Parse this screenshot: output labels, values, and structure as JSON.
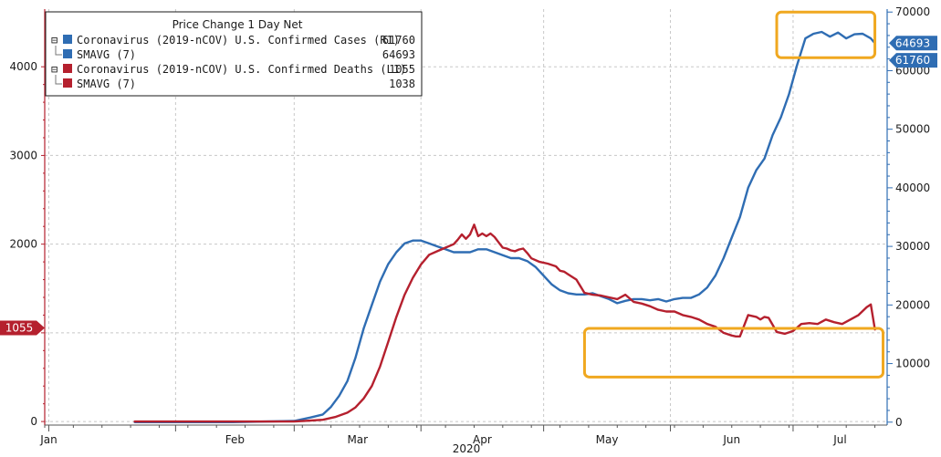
{
  "chart_data": {
    "type": "line",
    "legend": {
      "title": "Price Change 1 Day Net",
      "placement": "top-left",
      "entries": [
        {
          "label": "Coronavirus (2019-nCOV) U.S. Confirmed Cases  (R1)",
          "value": "61760",
          "color": "#2f6db3",
          "toggle": "⊟"
        },
        {
          "label": "SMAVG (7)",
          "value": "64693",
          "color": "#2f6db3",
          "toggle": ""
        },
        {
          "label": "Coronavirus (2019-nCOV) U.S. Confirmed Deaths  (L1)",
          "value": "1055",
          "color": "#b5202e",
          "toggle": "⊟"
        },
        {
          "label": "SMAVG (7)",
          "value": "1038",
          "color": "#b5202e",
          "toggle": ""
        }
      ]
    },
    "x_axis": {
      "title": "2020",
      "tick_labels": [
        "Jan",
        "Feb",
        "Mar",
        "Apr",
        "May",
        "Jun",
        "Jul"
      ],
      "tick_dates": [
        "2020-01-01",
        "2020-02-01",
        "2020-03-01",
        "2020-04-01",
        "2020-05-01",
        "2020-06-01",
        "2020-07-01"
      ],
      "range": [
        "2019-12-31",
        "2020-07-24"
      ]
    },
    "y_left": {
      "ticks": [
        0,
        1000,
        2000,
        3000,
        4000
      ],
      "tick_labels": [
        "0",
        "",
        "2000",
        "3000",
        "4000"
      ],
      "range": [
        -40,
        4650
      ]
    },
    "y_right": {
      "ticks": [
        0,
        10000,
        20000,
        30000,
        40000,
        50000,
        60000,
        70000
      ],
      "tick_labels": [
        "0",
        "10000",
        "20000",
        "30000",
        "40000",
        "50000",
        "60000",
        "70000"
      ],
      "range": [
        -500,
        70500
      ]
    },
    "grid": true,
    "flags": [
      {
        "axis": "left",
        "value": 1055,
        "text": "1055",
        "color": "#b5202e"
      },
      {
        "axis": "right",
        "value": 64693,
        "text": "64693",
        "color": "#2f6db3"
      },
      {
        "axis": "right",
        "value": 61760,
        "text": "61760",
        "color": "#2f6db3"
      }
    ],
    "highlights": [
      {
        "axis": "right",
        "x0": "2020-06-27",
        "x1": "2020-07-21",
        "y0": 62200,
        "y1": 70000,
        "color": "#f0a820"
      },
      {
        "axis": "right",
        "x0": "2020-05-11",
        "x1": "2020-07-23",
        "y0": 7700,
        "y1": 16000,
        "color": "#f0a820"
      }
    ],
    "series": [
      {
        "name": "SMAVG (7)",
        "axis": "right",
        "color": "#2f6db3",
        "x": [
          "2020-01-22",
          "2020-02-01",
          "2020-02-15",
          "2020-03-01",
          "2020-03-05",
          "2020-03-08",
          "2020-03-10",
          "2020-03-12",
          "2020-03-14",
          "2020-03-16",
          "2020-03-18",
          "2020-03-20",
          "2020-03-22",
          "2020-03-24",
          "2020-03-26",
          "2020-03-28",
          "2020-03-30",
          "2020-04-01",
          "2020-04-03",
          "2020-04-05",
          "2020-04-07",
          "2020-04-09",
          "2020-04-11",
          "2020-04-13",
          "2020-04-15",
          "2020-04-17",
          "2020-04-19",
          "2020-04-21",
          "2020-04-23",
          "2020-04-25",
          "2020-04-27",
          "2020-04-29",
          "2020-05-01",
          "2020-05-03",
          "2020-05-05",
          "2020-05-07",
          "2020-05-09",
          "2020-05-11",
          "2020-05-13",
          "2020-05-15",
          "2020-05-17",
          "2020-05-19",
          "2020-05-21",
          "2020-05-23",
          "2020-05-25",
          "2020-05-27",
          "2020-05-29",
          "2020-05-31",
          "2020-06-02",
          "2020-06-04",
          "2020-06-06",
          "2020-06-08",
          "2020-06-10",
          "2020-06-12",
          "2020-06-14",
          "2020-06-16",
          "2020-06-18",
          "2020-06-20",
          "2020-06-22",
          "2020-06-24",
          "2020-06-26",
          "2020-06-28",
          "2020-06-30",
          "2020-07-02",
          "2020-07-04",
          "2020-07-06",
          "2020-07-08",
          "2020-07-10",
          "2020-07-12",
          "2020-07-14",
          "2020-07-16",
          "2020-07-18",
          "2020-07-20",
          "2020-07-21"
        ],
        "values": [
          0,
          0,
          0,
          200,
          800,
          1300,
          2600,
          4500,
          7000,
          11000,
          16000,
          20000,
          24000,
          27000,
          29000,
          30500,
          31000,
          31000,
          30500,
          30000,
          29500,
          29000,
          29000,
          29000,
          29500,
          29500,
          29000,
          28500,
          28000,
          28000,
          27500,
          26500,
          25000,
          23500,
          22500,
          22000,
          21800,
          21800,
          22000,
          21500,
          21000,
          20300,
          20700,
          21000,
          21000,
          20800,
          21000,
          20600,
          21000,
          21200,
          21200,
          21800,
          23000,
          25000,
          28000,
          31500,
          35000,
          40000,
          43000,
          45000,
          49000,
          52000,
          56000,
          61000,
          65500,
          66300,
          66600,
          65800,
          66500,
          65500,
          66200,
          66300,
          65500,
          64693
        ]
      },
      {
        "name": "SMAVG (7)",
        "axis": "left",
        "color": "#b5202e",
        "x": [
          "2020-01-22",
          "2020-02-01",
          "2020-02-15",
          "2020-03-01",
          "2020-03-05",
          "2020-03-08",
          "2020-03-11",
          "2020-03-14",
          "2020-03-16",
          "2020-03-18",
          "2020-03-20",
          "2020-03-22",
          "2020-03-24",
          "2020-03-26",
          "2020-03-28",
          "2020-03-30",
          "2020-04-01",
          "2020-04-03",
          "2020-04-05",
          "2020-04-07",
          "2020-04-09",
          "2020-04-10",
          "2020-04-11",
          "2020-04-12",
          "2020-04-13",
          "2020-04-14",
          "2020-04-15",
          "2020-04-16",
          "2020-04-17",
          "2020-04-18",
          "2020-04-19",
          "2020-04-20",
          "2020-04-21",
          "2020-04-22",
          "2020-04-23",
          "2020-04-24",
          "2020-04-25",
          "2020-04-26",
          "2020-04-27",
          "2020-04-28",
          "2020-04-30",
          "2020-05-02",
          "2020-05-04",
          "2020-05-05",
          "2020-05-06",
          "2020-05-07",
          "2020-05-09",
          "2020-05-11",
          "2020-05-13",
          "2020-05-15",
          "2020-05-17",
          "2020-05-19",
          "2020-05-21",
          "2020-05-23",
          "2020-05-25",
          "2020-05-27",
          "2020-05-29",
          "2020-05-31",
          "2020-06-02",
          "2020-06-04",
          "2020-06-06",
          "2020-06-08",
          "2020-06-10",
          "2020-06-12",
          "2020-06-14",
          "2020-06-16",
          "2020-06-17",
          "2020-06-18",
          "2020-06-20",
          "2020-06-22",
          "2020-06-23",
          "2020-06-24",
          "2020-06-25",
          "2020-06-27",
          "2020-06-29",
          "2020-07-01",
          "2020-07-03",
          "2020-07-05",
          "2020-07-07",
          "2020-07-09",
          "2020-07-11",
          "2020-07-13",
          "2020-07-15",
          "2020-07-17",
          "2020-07-19",
          "2020-07-20",
          "2020-07-21"
        ],
        "values": [
          0,
          0,
          0,
          0,
          10,
          20,
          50,
          100,
          160,
          260,
          400,
          620,
          900,
          1180,
          1430,
          1620,
          1770,
          1880,
          1920,
          1960,
          2000,
          2050,
          2110,
          2060,
          2110,
          2220,
          2090,
          2120,
          2090,
          2120,
          2080,
          2020,
          1960,
          1950,
          1930,
          1920,
          1940,
          1950,
          1900,
          1840,
          1800,
          1780,
          1750,
          1700,
          1690,
          1660,
          1600,
          1450,
          1430,
          1420,
          1400,
          1380,
          1430,
          1350,
          1330,
          1300,
          1260,
          1240,
          1240,
          1200,
          1180,
          1150,
          1100,
          1070,
          1000,
          970,
          960,
          960,
          1200,
          1180,
          1150,
          1180,
          1170,
          1010,
          990,
          1020,
          1100,
          1110,
          1100,
          1150,
          1120,
          1100,
          1150,
          1200,
          1290,
          1320,
          1038
        ]
      }
    ]
  }
}
